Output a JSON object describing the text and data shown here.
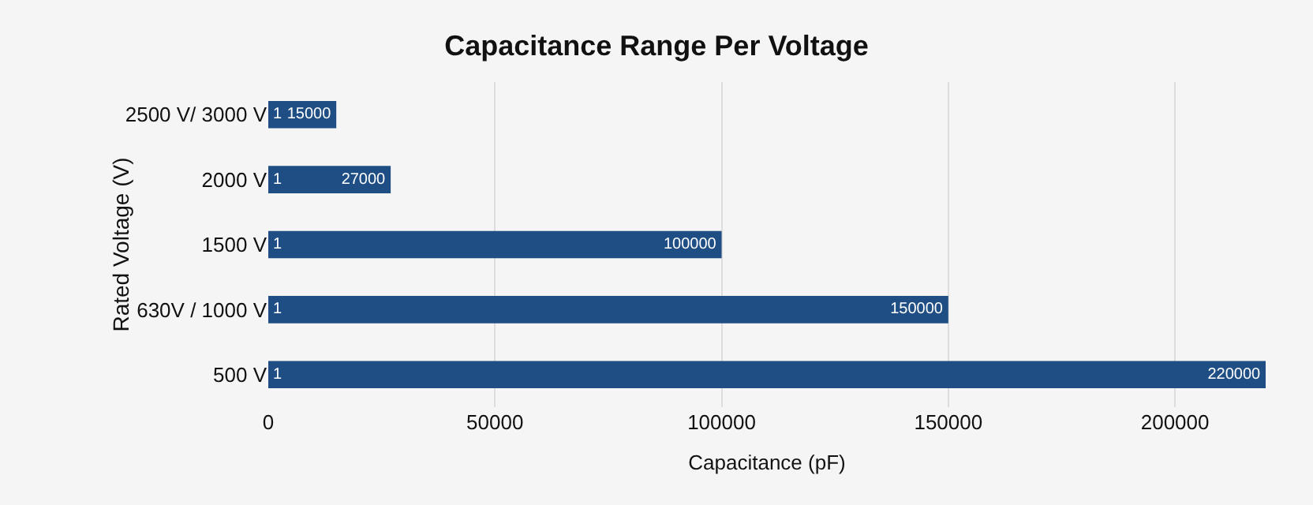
{
  "chart_data": {
    "type": "bar",
    "orientation": "horizontal",
    "title": "Capacitance Range Per Voltage",
    "xlabel": "Capacitance (pF)",
    "ylabel": "Rated Voltage (V)",
    "categories": [
      "2500 V/ 3000 V",
      "2000 V",
      "1500 V",
      "630V / 1000 V",
      "500 V"
    ],
    "series": [
      {
        "color": "#1f4e84",
        "values": [
          1,
          1,
          1,
          1,
          1
        ]
      },
      {
        "color": "#1f4e84",
        "values": [
          15000,
          27000,
          100000,
          150000,
          220000
        ]
      }
    ],
    "xlim": [
      0,
      220000
    ],
    "xticks": [
      0,
      50000,
      100000,
      150000,
      200000
    ],
    "grid": "x",
    "data_labels": true
  }
}
